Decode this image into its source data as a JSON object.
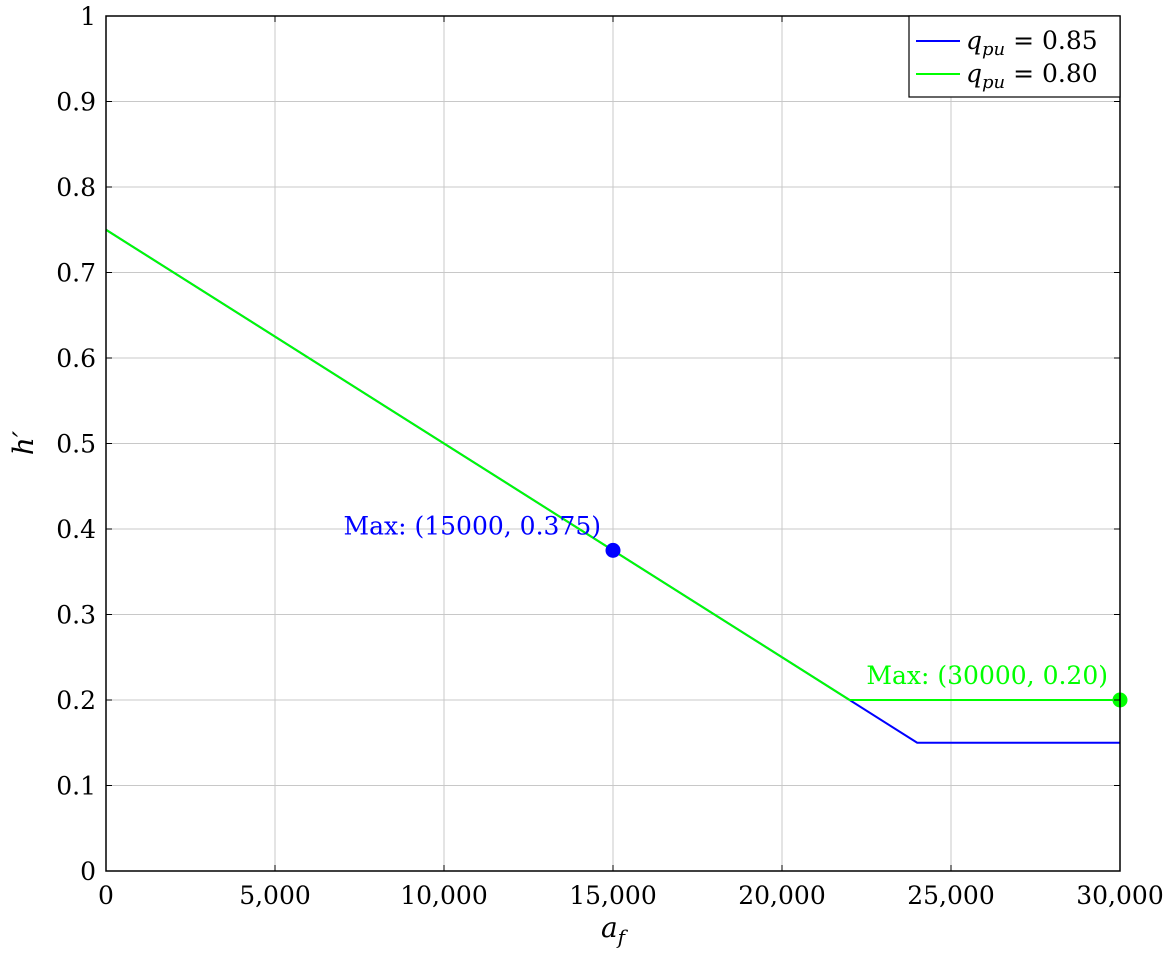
{
  "chart_data": {
    "type": "line",
    "xlabel": "a_f",
    "ylabel": "h′",
    "xlim": [
      0,
      30000
    ],
    "ylim": [
      0,
      1
    ],
    "x_ticks": [
      0,
      5000,
      10000,
      15000,
      20000,
      25000,
      30000
    ],
    "x_tick_labels": [
      "0",
      "5,000",
      "10,000",
      "15,000",
      "20,000",
      "25,000",
      "30,000"
    ],
    "y_ticks": [
      0,
      0.1,
      0.2,
      0.3,
      0.4,
      0.5,
      0.6,
      0.7,
      0.8,
      0.9,
      1
    ],
    "y_tick_labels": [
      "0",
      "0.1",
      "0.2",
      "0.3",
      "0.4",
      "0.5",
      "0.6",
      "0.7",
      "0.8",
      "0.9",
      "1"
    ],
    "grid": true,
    "legend_position": "top-right",
    "series": [
      {
        "name": "q_pu = 0.85",
        "name_base": "q",
        "name_sub": "pu",
        "name_rest": " = 0.85",
        "color": "#0000ff",
        "x": [
          0,
          24000,
          30000
        ],
        "y": [
          0.75,
          0.15,
          0.15
        ]
      },
      {
        "name": "q_pu = 0.80",
        "name_base": "q",
        "name_sub": "pu",
        "name_rest": " = 0.80",
        "color": "#00ff00",
        "x": [
          0,
          22000,
          30000
        ],
        "y": [
          0.75,
          0.2,
          0.2
        ]
      }
    ],
    "annotations": [
      {
        "text": "Max: (15000, 0.375)",
        "x": 15000,
        "y": 0.375,
        "color": "#0000ff",
        "anchor": "upper-left"
      },
      {
        "text": "Max: (30000, 0.20)",
        "x": 30000,
        "y": 0.2,
        "color": "#00ff00",
        "anchor": "upper-left"
      }
    ]
  }
}
